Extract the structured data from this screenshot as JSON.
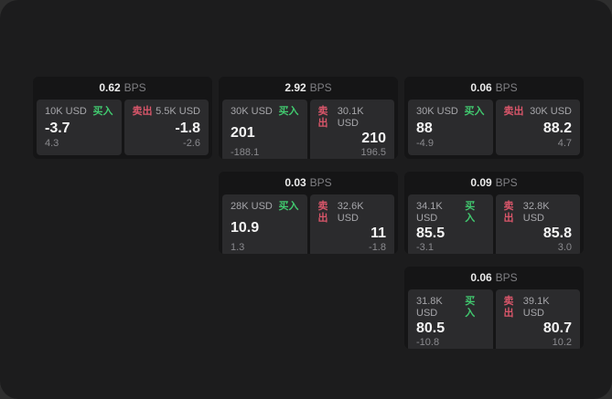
{
  "labels": {
    "bps": "BPS",
    "buy": "买入",
    "sell": "卖出"
  },
  "colors": {
    "page_bg": "#2e2e2e",
    "window_bg": "#1c1c1d",
    "card_bg": "#151516",
    "panel_bg": "#2b2b2d",
    "buy_green": "#41c96f",
    "sell_red": "#d9566a",
    "price_text": "#f4f4f4",
    "muted_text": "#8a8a8e"
  },
  "cards": [
    {
      "bps": "0.62",
      "buy": {
        "notional": "10K USD",
        "price": "-3.7",
        "sub": "4.3"
      },
      "sell": {
        "notional": "5.5K USD",
        "price": "-1.8",
        "sub": "-2.6"
      }
    },
    {
      "bps": "2.92",
      "buy": {
        "notional": "30K USD",
        "price": "201",
        "sub": "-188.1"
      },
      "sell": {
        "notional": "30.1K USD",
        "price": "210",
        "sub": "196.5"
      }
    },
    {
      "bps": "0.06",
      "buy": {
        "notional": "30K USD",
        "price": "88",
        "sub": "-4.9"
      },
      "sell": {
        "notional": "30K USD",
        "price": "88.2",
        "sub": "4.7"
      }
    },
    {
      "bps": "0.03",
      "buy": {
        "notional": "28K USD",
        "price": "10.9",
        "sub": "1.3"
      },
      "sell": {
        "notional": "32.6K USD",
        "price": "11",
        "sub": "-1.8"
      }
    },
    {
      "bps": "0.09",
      "buy": {
        "notional": "34.1K USD",
        "price": "85.5",
        "sub": "-3.1"
      },
      "sell": {
        "notional": "32.8K USD",
        "price": "85.8",
        "sub": "3.0"
      }
    },
    {
      "bps": "0.06",
      "buy": {
        "notional": "31.8K USD",
        "price": "80.5",
        "sub": "-10.8"
      },
      "sell": {
        "notional": "39.1K USD",
        "price": "80.7",
        "sub": "10.2"
      }
    }
  ]
}
